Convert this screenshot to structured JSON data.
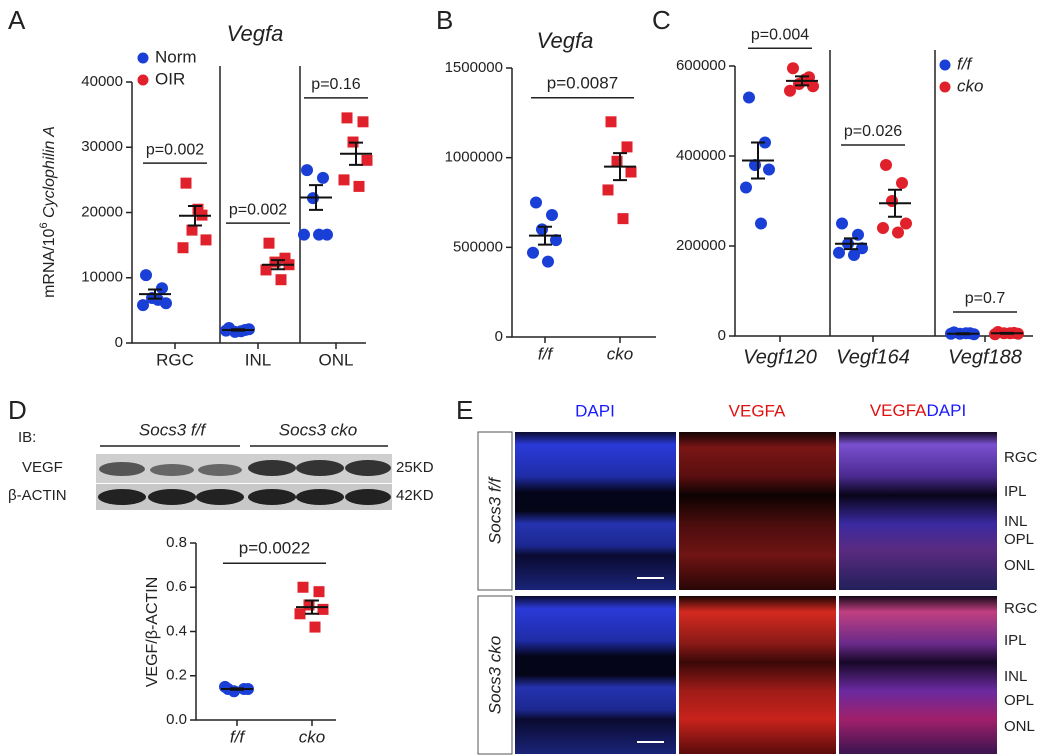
{
  "panel_labels": [
    "A",
    "B",
    "C",
    "D",
    "E"
  ],
  "chart_data": [
    {
      "type": "dotplot",
      "title": "Vegfa",
      "y_label": {
        "prefix": "mRNA/10",
        "sup": "6",
        "italic": "Cyclophilin A"
      },
      "categories": [
        "RGC",
        "INL",
        "ONL"
      ],
      "ylim": [
        0,
        40000
      ],
      "yticks": [
        0,
        10000,
        20000,
        30000,
        40000
      ],
      "separators": true,
      "series": [
        {
          "name": "Norm",
          "color": "#1a3fd6",
          "marker": "circle",
          "values": [
            [
              10400,
              8400,
              6900,
              6100,
              5800,
              6600
            ],
            [
              2300,
              2000,
              1700,
              2100,
              1900,
              1800
            ],
            [
              26500,
              25300,
              22200,
              16600,
              16600,
              16600
            ]
          ],
          "means": [
            7500,
            2000,
            22300
          ],
          "sems": [
            700,
            100,
            1900
          ]
        },
        {
          "name": "OIR",
          "color": "#e0202a",
          "marker": "square",
          "values": [
            [
              24500,
              19600,
              17300,
              15800,
              14600,
              20500
            ],
            [
              15300,
              13000,
              12400,
              12000,
              11200,
              9700
            ],
            [
              34500,
              33900,
              30800,
              28000,
              25000,
              24000
            ]
          ],
          "means": [
            19500,
            12000,
            29000
          ],
          "sems": [
            1500,
            700,
            1700
          ]
        }
      ],
      "comparisons": [
        "p=0.002",
        "p=0.002",
        "p=0.16"
      ]
    },
    {
      "type": "dotplot",
      "title": "Vegfa",
      "categories": [
        "f/f",
        "cko"
      ],
      "ylim": [
        0,
        1500000
      ],
      "yticks": [
        0,
        500000,
        1000000,
        1500000
      ],
      "series": [
        {
          "color": "#1a3fd6",
          "marker": "circle",
          "values": [
            [
              750000,
              680000,
              600000,
              540000,
              470000,
              420000
            ],
            []
          ],
          "means": [
            565000,
            null
          ],
          "sems": [
            50000,
            null
          ]
        },
        {
          "color": "#e0202a",
          "marker": "square",
          "values": [
            [],
            [
              1200000,
              1060000,
              980000,
              920000,
              820000,
              660000
            ]
          ],
          "means": [
            null,
            950000
          ],
          "sems": [
            null,
            75000
          ]
        }
      ],
      "comparison": "p=0.0087"
    },
    {
      "type": "dotplot",
      "categories": [
        "Vegf120",
        "Vegf164",
        "Vegf188"
      ],
      "ylim": [
        0,
        600000
      ],
      "yticks": [
        0,
        200000,
        400000,
        600000
      ],
      "separators": true,
      "series": [
        {
          "name": "f/f",
          "color": "#1a3fd6",
          "marker": "circle",
          "values": [
            [
              530000,
              430000,
              380000,
              370000,
              330000,
              250000
            ],
            [
              250000,
              225000,
              205000,
              195000,
              185000,
              180000
            ],
            [
              8000,
              6000,
              5000,
              4000,
              5000,
              6000
            ]
          ],
          "means": [
            390000,
            205000,
            5000
          ],
          "sems": [
            40000,
            12000,
            1000
          ]
        },
        {
          "name": "cko",
          "color": "#e0202a",
          "marker": "circle",
          "values": [
            [
              595000,
              575000,
              560000,
              555000,
              545000,
              570000
            ],
            [
              380000,
              340000,
              300000,
              250000,
              240000,
              230000
            ],
            [
              9000,
              7000,
              6000,
              5000,
              4000,
              6000
            ]
          ],
          "means": [
            567000,
            295000,
            6000
          ],
          "sems": [
            10000,
            30000,
            1000
          ]
        }
      ],
      "comparisons": [
        "p=0.004",
        "p=0.026",
        "p=0.7"
      ]
    },
    {
      "type": "dotplot",
      "y_label": {
        "prefix": "VEGF/β-ACTIN"
      },
      "categories": [
        "f/f",
        "cko"
      ],
      "ylim": [
        0,
        0.8
      ],
      "yticks": [
        {
          "value": 0,
          "label": "0.0"
        },
        0.2,
        0.4,
        0.6,
        0.8
      ],
      "series": [
        {
          "color": "#1a3fd6",
          "marker": "circle",
          "values": [
            [
              0.14,
              0.14,
              0.13,
              0.14,
              0.15
            ],
            []
          ],
          "means": [
            0.14,
            null
          ],
          "sems": [
            0.003,
            null
          ]
        },
        {
          "color": "#e0202a",
          "marker": "square",
          "values": [
            [],
            [
              0.6,
              0.58,
              0.52,
              0.5,
              0.48,
              0.42
            ]
          ],
          "means": [
            null,
            0.51
          ],
          "sems": [
            null,
            0.03
          ]
        }
      ],
      "comparison": "p=0.0022"
    }
  ],
  "blot": {
    "ib_label": "IB:",
    "groups": [
      "Socs3 f/f",
      "Socs3 cko"
    ],
    "rows": [
      {
        "name": "VEGF",
        "size": "25KD"
      },
      {
        "name": "β-ACTIN",
        "size": "42KD"
      }
    ]
  },
  "images": {
    "column_titles": [
      "DAPI",
      "VEGFA"
    ],
    "merge_title": [
      "VEGFA",
      "DAPI"
    ],
    "rows": [
      "Socs3 f/f",
      "Socs3 cko"
    ],
    "layers": [
      [
        "RGC",
        "IPL",
        "INL",
        "OPL",
        "ONL"
      ],
      [
        "RGC",
        "IPL",
        "INL",
        "OPL",
        "ONL"
      ]
    ]
  }
}
